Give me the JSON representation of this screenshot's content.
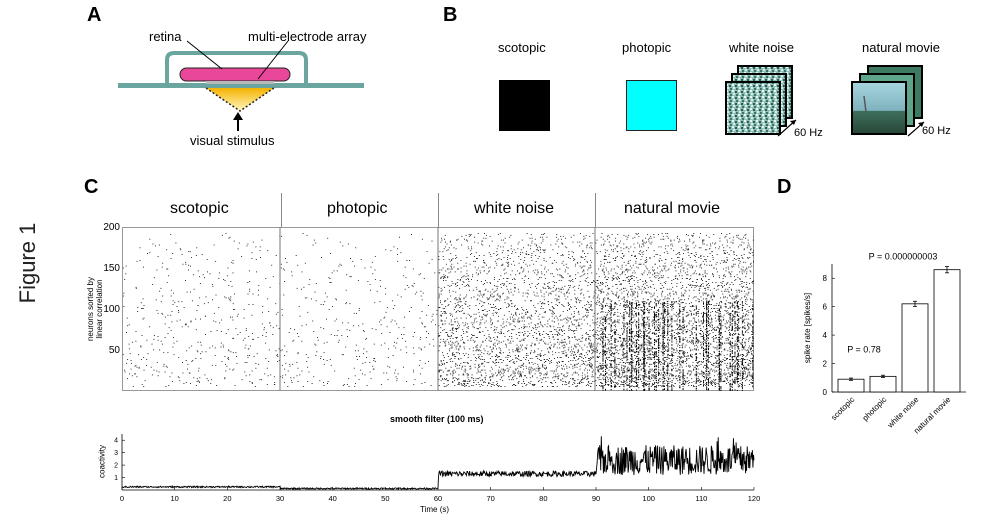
{
  "figure_label": "Figure 1",
  "panel_a": {
    "letter": "A",
    "retina": "retina",
    "array": "multi-electrode array",
    "stimulus": "visual stimulus"
  },
  "panel_b": {
    "letter": "B",
    "conditions": [
      "scotopic",
      "photopic",
      "white noise",
      "natural movie"
    ],
    "rate_wn": "60 Hz",
    "rate_nm": "60 Hz",
    "colors": {
      "scotopic": "#000000",
      "photopic": "#00ffff"
    }
  },
  "panel_c": {
    "letter": "C",
    "sections": [
      "scotopic",
      "photopic",
      "white noise",
      "natural movie"
    ],
    "raster_ylabel_1": "neurons sorted by",
    "raster_ylabel_2": "linear correlation",
    "raster_yticks": [
      "200",
      "150",
      "100",
      "50"
    ],
    "filter_title": "smooth filter (100 ms)",
    "coact_ylabel": "coactivity",
    "coact_yticks": [
      "4",
      "3",
      "2",
      "1"
    ],
    "xticks": [
      "0",
      "10",
      "20",
      "30",
      "40",
      "50",
      "60",
      "70",
      "80",
      "90",
      "100",
      "110",
      "120"
    ],
    "xlabel": "Time (s)"
  },
  "chart_data": [
    {
      "type": "line",
      "title": "smooth filter (100 ms)",
      "xlabel": "Time (s)",
      "ylabel": "coactivity",
      "xlim": [
        0,
        120
      ],
      "ylim": [
        0,
        4.5
      ],
      "segments": [
        {
          "label": "scotopic",
          "x_range": [
            0,
            30
          ],
          "mean": 0.25
        },
        {
          "label": "photopic",
          "x_range": [
            30,
            60
          ],
          "mean": 0.12
        },
        {
          "label": "white noise",
          "x_range": [
            60,
            90
          ],
          "mean": 1.3
        },
        {
          "label": "natural movie",
          "x_range": [
            90,
            120
          ],
          "mean": 2.3
        }
      ]
    },
    {
      "type": "bar",
      "ylabel": "spike rate [spikes/s]",
      "categories": [
        "scotopic",
        "photopic",
        "white noise",
        "natural movie"
      ],
      "values": [
        0.9,
        1.1,
        6.2,
        8.6
      ],
      "errors": [
        0.08,
        0.08,
        0.18,
        0.22
      ],
      "ylim": [
        0,
        9
      ],
      "yticks": [
        "0",
        "2",
        "4",
        "6",
        "8"
      ],
      "annotations": [
        "P = 0.78",
        "P = 0.000000003"
      ]
    }
  ],
  "panel_d": {
    "letter": "D"
  }
}
